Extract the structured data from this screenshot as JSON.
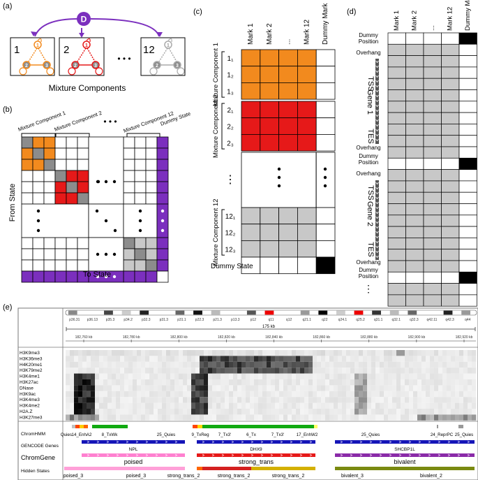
{
  "colors": {
    "purple": "#7b2fbe",
    "orange": "#f28a1e",
    "red": "#e61919",
    "gray": "#8c8c8c",
    "light_gray": "#c8c8c8",
    "dark_fill": "#000000"
  },
  "panel_a": {
    "tag": "(a)",
    "dummy_letter": "D",
    "components": [
      {
        "num": "1",
        "n1": "1",
        "n2": "2",
        "n3": "3"
      },
      {
        "num": "2",
        "n1": "1",
        "n2": "2",
        "n3": "3"
      },
      {
        "num": "12",
        "n1": "1",
        "n2": "2",
        "n3": "3"
      }
    ],
    "ellipsis": "• • •",
    "caption": "Mixture Components"
  },
  "panel_b": {
    "tag": "(b)",
    "col_headers": [
      "Mixture Component 1",
      "Mixture Component 2",
      "Mixture Component 12",
      "Dummy State"
    ],
    "ellipsis": "• • •",
    "y_label": "From State",
    "x_label": "To State"
  },
  "panel_c": {
    "tag": "(c)",
    "col_headers": [
      "Mark 1",
      "Mark 2",
      "...",
      "Mark 12",
      "Dummy Mark"
    ],
    "groups": [
      {
        "label": "Mixture Component 1",
        "rows": [
          "1₁",
          "1₂",
          "1₃"
        ]
      },
      {
        "label": "Mixture Component 2",
        "rows": [
          "2₁",
          "2₂",
          "2₃"
        ]
      },
      {
        "label": "Mixture Component 12",
        "rows": [
          "12₁",
          "12₂",
          "12₃"
        ]
      }
    ],
    "vdots": "⋮",
    "dummy_label": "Dummy State"
  },
  "panel_d": {
    "tag": "(d)",
    "col_headers": [
      "Mark 1",
      "Mark 2",
      "...",
      "Mark 12",
      "Dummy Mark"
    ],
    "row_labels": {
      "dummy_position": "Dummy Position",
      "overhang": "Overhang",
      "tss": "TSS",
      "gene1": "Gene 1",
      "gene2": "Gene 2",
      "tes": "TES"
    },
    "vdots": "⋮"
  },
  "panel_e": {
    "tag": "(e)",
    "cytobands": [
      "p36.31",
      "p36.13",
      "p35.3",
      "p34.2",
      "p32.3",
      "p31.3",
      "p31.1",
      "p22.3",
      "p21.3",
      "p13.3",
      "p12",
      "q11",
      "q12",
      "q21.1",
      "q22",
      "q24.1",
      "q25.2",
      "q31.1",
      "q32.1",
      "q32.3",
      "q42.11",
      "q42.3",
      "q44"
    ],
    "scale_label": "175 kb",
    "coords": [
      "182,760 kb",
      "182,780 kb",
      "182,800 kb",
      "182,820 kb",
      "182,840 kb",
      "182,860 kb",
      "182,880 kb",
      "182,900 kb",
      "182,920 kb"
    ],
    "marks": [
      "H3K9me3",
      "H3K36me3",
      "H4K20me1",
      "H3K79me2",
      "H3K4me1",
      "H3K27ac",
      "DNase",
      "H3K9ac",
      "H3K4me3",
      "H3K4me2",
      "H2A.Z",
      "H3K27me3"
    ],
    "tracks": {
      "chromhmm": "ChromHMM",
      "gencode": "GENCODE Genes",
      "chromgene": "ChromGene",
      "hidden": "Hidden States"
    },
    "chromhmm_labels": [
      "Quies",
      "14_EnhA2",
      "8_TxWk",
      "25_Quies",
      "9_TxReg",
      "7_Tx3'",
      "6_Tx",
      "7_Tx3'",
      "17_EnhW2",
      "25_Quies",
      "24_ReprPC",
      "25_Quies"
    ],
    "genes": [
      "NPL",
      "DHX9",
      "SHCBP1L"
    ],
    "chromgene_labels": [
      "poised",
      "strong_trans",
      "bivalent"
    ],
    "hidden_labels": [
      "poised_3",
      "poised_3",
      "strong_trans_2",
      "strong_trans_2",
      "strong_trans_2",
      "bivalent_3",
      "bivalent_2"
    ]
  }
}
